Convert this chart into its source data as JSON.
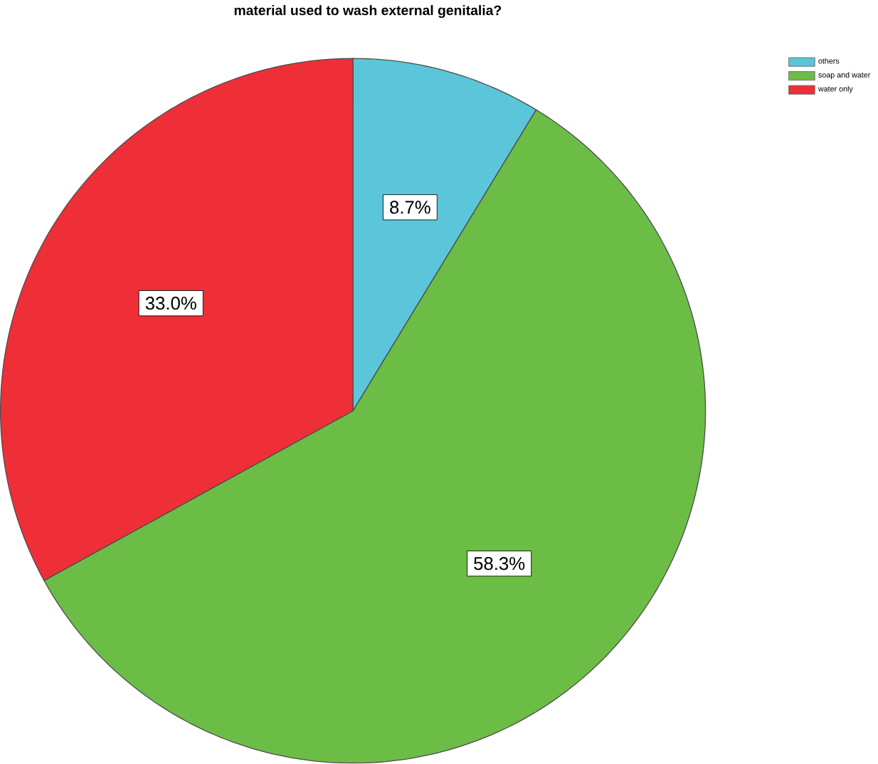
{
  "chart_data": {
    "type": "pie",
    "title": "material used to wash external genitalia?",
    "categories": [
      "others",
      "soap and water",
      "water only"
    ],
    "values": [
      8.7,
      58.3,
      33.0
    ],
    "value_labels": [
      "8.7%",
      "58.3%",
      "33.0%"
    ],
    "colors": [
      "#5bc5d9",
      "#6cbd45",
      "#ee2f37"
    ],
    "legend": "top right"
  }
}
